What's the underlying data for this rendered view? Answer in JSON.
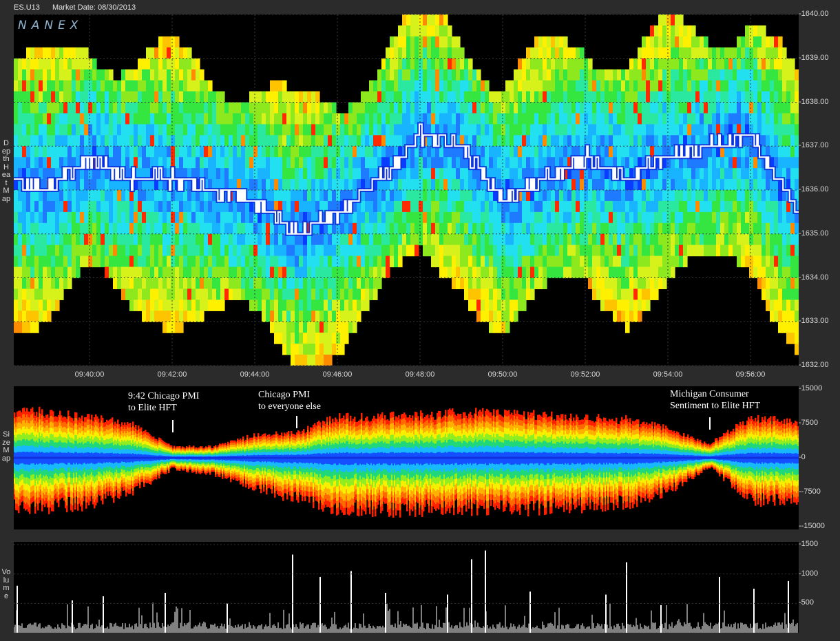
{
  "header": {
    "symbol": "ES.U13",
    "market_date": "Market Date: 08/30/2013"
  },
  "logo": "NANEX",
  "colors": {
    "background": "#000000",
    "frame": "#2b2b2b",
    "trade_line": "#ffffff",
    "volume_bars": "#ffffff"
  },
  "chart_data": [
    {
      "type": "heatmap",
      "title": "Depth Heat Map",
      "y_ticks": [
        "1640.00",
        "1639.00",
        "1638.00",
        "1637.00",
        "1636.00",
        "1635.00",
        "1634.00",
        "1633.00",
        "1632.00"
      ],
      "ylim": [
        1632.0,
        1640.0
      ],
      "x_ticks": [
        "09:40:00",
        "09:42:00",
        "09:44:00",
        "09:46:00",
        "09:48:00",
        "09:50:00",
        "09:52:00",
        "09:54:00",
        "09:56:00"
      ],
      "xlim": [
        "09:38:10",
        "09:57:10"
      ],
      "trade_price_series": {
        "x": [
          "09:38:10",
          "09:39:00",
          "09:40:00",
          "09:41:00",
          "09:42:00",
          "09:43:00",
          "09:44:00",
          "09:45:00",
          "09:46:00",
          "09:47:00",
          "09:48:00",
          "09:49:00",
          "09:50:00",
          "09:51:00",
          "09:52:00",
          "09:53:00",
          "09:54:00",
          "09:55:00",
          "09:56:00",
          "09:57:10"
        ],
        "price": [
          1636.25,
          1636.0,
          1636.75,
          1636.25,
          1636.25,
          1636.0,
          1635.75,
          1635.0,
          1635.5,
          1636.25,
          1637.25,
          1637.0,
          1635.75,
          1636.25,
          1636.75,
          1636.25,
          1636.75,
          1637.0,
          1637.25,
          1635.5
        ]
      }
    },
    {
      "type": "area",
      "title": "Size Map",
      "y_ticks": [
        "15000",
        "7500",
        "0",
        "-7500",
        "-15000"
      ],
      "ylim": [
        -15000,
        15000
      ],
      "annotations": [
        {
          "time": "09:42:00",
          "lines": [
            "9:42 Chicago PMI",
            "to Elite HFT"
          ]
        },
        {
          "time": "09:45:00",
          "lines": [
            "Chicago PMI",
            "to everyone else"
          ]
        },
        {
          "time": "09:55:00",
          "lines": [
            "Michigan Consumer",
            "Sentiment to Elite HFT"
          ]
        }
      ],
      "envelope": {
        "x": [
          "09:38:10",
          "09:39:00",
          "09:40:00",
          "09:41:00",
          "09:42:00",
          "09:43:00",
          "09:44:00",
          "09:45:00",
          "09:46:00",
          "09:47:00",
          "09:48:00",
          "09:49:00",
          "09:50:00",
          "09:51:00",
          "09:52:00",
          "09:53:00",
          "09:54:00",
          "09:55:00",
          "09:56:00",
          "09:57:10"
        ],
        "upper": [
          10500,
          10000,
          9000,
          7500,
          2500,
          2500,
          5000,
          5500,
          9000,
          9000,
          9500,
          10000,
          10000,
          9500,
          9000,
          8500,
          6500,
          3000,
          9000,
          8000
        ],
        "lower": [
          -10500,
          -11000,
          -10000,
          -7500,
          -2500,
          -3500,
          -6500,
          -9000,
          -11000,
          -11500,
          -11500,
          -11000,
          -11500,
          -11000,
          -10500,
          -10000,
          -7500,
          -2000,
          -9500,
          -9000
        ]
      }
    },
    {
      "type": "bar",
      "title": "Volume",
      "y_ticks": [
        "1500",
        "1000",
        "500"
      ],
      "ylim": [
        0,
        1500
      ],
      "spikes": [
        {
          "time": "09:38:15",
          "value": 800
        },
        {
          "time": "09:39:35",
          "value": 550
        },
        {
          "time": "09:40:20",
          "value": 620
        },
        {
          "time": "09:41:50",
          "value": 680
        },
        {
          "time": "09:43:20",
          "value": 500
        },
        {
          "time": "09:44:55",
          "value": 1330
        },
        {
          "time": "09:45:35",
          "value": 950
        },
        {
          "time": "09:46:20",
          "value": 1050
        },
        {
          "time": "09:47:10",
          "value": 680
        },
        {
          "time": "09:48:40",
          "value": 650
        },
        {
          "time": "09:49:15",
          "value": 1250
        },
        {
          "time": "09:49:35",
          "value": 1400
        },
        {
          "time": "09:50:40",
          "value": 700
        },
        {
          "time": "09:52:30",
          "value": 650
        },
        {
          "time": "09:53:00",
          "value": 1200
        },
        {
          "time": "09:53:50",
          "value": 470
        },
        {
          "time": "09:55:15",
          "value": 950
        },
        {
          "time": "09:56:05",
          "value": 750
        },
        {
          "time": "09:56:55",
          "value": 880
        }
      ]
    }
  ]
}
